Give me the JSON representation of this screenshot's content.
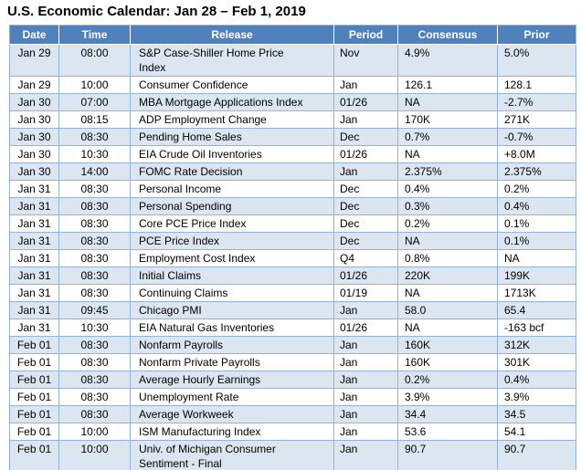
{
  "title": "U.S. Economic Calendar: Jan 28 – Feb 1, 2019",
  "colors": {
    "header_bg": "#4F81BD",
    "header_text": "#FFFFFF",
    "row_alt_bg": "#DCE6F1",
    "row_bg": "#FFFFFF",
    "grid_border": "#95B3D7",
    "title_text": "#000000"
  },
  "table": {
    "columns": [
      "Date",
      "Time",
      "Release",
      "Period",
      "Consensus",
      "Prior"
    ],
    "rows": [
      {
        "date": "Jan 29",
        "time": "08:00",
        "release": "S&P Case-Shiller Home Price\nIndex",
        "period": "Nov",
        "consensus": "4.9%",
        "prior": "5.0%"
      },
      {
        "date": "Jan 29",
        "time": "10:00",
        "release": "Consumer Confidence",
        "period": "Jan",
        "consensus": "126.1",
        "prior": "128.1"
      },
      {
        "date": "Jan 30",
        "time": "07:00",
        "release": "MBA Mortgage Applications Index",
        "period": "01/26",
        "consensus": "NA",
        "prior": "-2.7%"
      },
      {
        "date": "Jan 30",
        "time": "08:15",
        "release": "ADP Employment Change",
        "period": "Jan",
        "consensus": "170K",
        "prior": "271K"
      },
      {
        "date": "Jan 30",
        "time": "08:30",
        "release": "Pending Home Sales",
        "period": "Dec",
        "consensus": "0.7%",
        "prior": "-0.7%"
      },
      {
        "date": "Jan 30",
        "time": "10:30",
        "release": "EIA Crude Oil Inventories",
        "period": "01/26",
        "consensus": "NA",
        "prior": "+8.0M"
      },
      {
        "date": "Jan 30",
        "time": "14:00",
        "release": "FOMC Rate Decision",
        "period": "Jan",
        "consensus": "2.375%",
        "prior": "2.375%"
      },
      {
        "date": "Jan 31",
        "time": "08:30",
        "release": "Personal Income",
        "period": "Dec",
        "consensus": "0.4%",
        "prior": "0.2%"
      },
      {
        "date": "Jan 31",
        "time": "08:30",
        "release": "Personal Spending",
        "period": "Dec",
        "consensus": "0.3%",
        "prior": "0.4%"
      },
      {
        "date": "Jan 31",
        "time": "08:30",
        "release": "Core PCE Price Index",
        "period": "Dec",
        "consensus": "0.2%",
        "prior": "0.1%"
      },
      {
        "date": "Jan 31",
        "time": "08:30",
        "release": "PCE Price Index",
        "period": "Dec",
        "consensus": "NA",
        "prior": "0.1%"
      },
      {
        "date": "Jan 31",
        "time": "08:30",
        "release": "Employment Cost Index",
        "period": "Q4",
        "consensus": "0.8%",
        "prior": "NA"
      },
      {
        "date": "Jan 31",
        "time": "08:30",
        "release": "Initial Claims",
        "period": "01/26",
        "consensus": "220K",
        "prior": "199K"
      },
      {
        "date": "Jan 31",
        "time": "08:30",
        "release": "Continuing Claims",
        "period": "01/19",
        "consensus": "NA",
        "prior": "1713K"
      },
      {
        "date": "Jan 31",
        "time": "09:45",
        "release": "Chicago PMI",
        "period": "Jan",
        "consensus": "58.0",
        "prior": "65.4"
      },
      {
        "date": "Jan 31",
        "time": "10:30",
        "release": "EIA Natural Gas Inventories",
        "period": "01/26",
        "consensus": "NA",
        "prior": "-163 bcf"
      },
      {
        "date": "Feb 01",
        "time": "08:30",
        "release": "Nonfarm Payrolls",
        "period": "Jan",
        "consensus": "160K",
        "prior": "312K"
      },
      {
        "date": "Feb 01",
        "time": "08:30",
        "release": "Nonfarm Private Payrolls",
        "period": "Jan",
        "consensus": "160K",
        "prior": "301K"
      },
      {
        "date": "Feb 01",
        "time": "08:30",
        "release": "Average Hourly Earnings",
        "period": "Jan",
        "consensus": "0.2%",
        "prior": "0.4%"
      },
      {
        "date": "Feb 01",
        "time": "08:30",
        "release": "Unemployment Rate",
        "period": "Jan",
        "consensus": "3.9%",
        "prior": "3.9%"
      },
      {
        "date": "Feb 01",
        "time": "08:30",
        "release": "Average Workweek",
        "period": "Jan",
        "consensus": "34.4",
        "prior": "34.5"
      },
      {
        "date": "Feb 01",
        "time": "10:00",
        "release": "ISM Manufacturing Index",
        "period": "Jan",
        "consensus": "53.6",
        "prior": "54.1"
      },
      {
        "date": "Feb 01",
        "time": "10:00",
        "release": "Univ. of Michigan Consumer\nSentiment - Final",
        "period": "Jan",
        "consensus": "90.7",
        "prior": "90.7"
      }
    ]
  }
}
